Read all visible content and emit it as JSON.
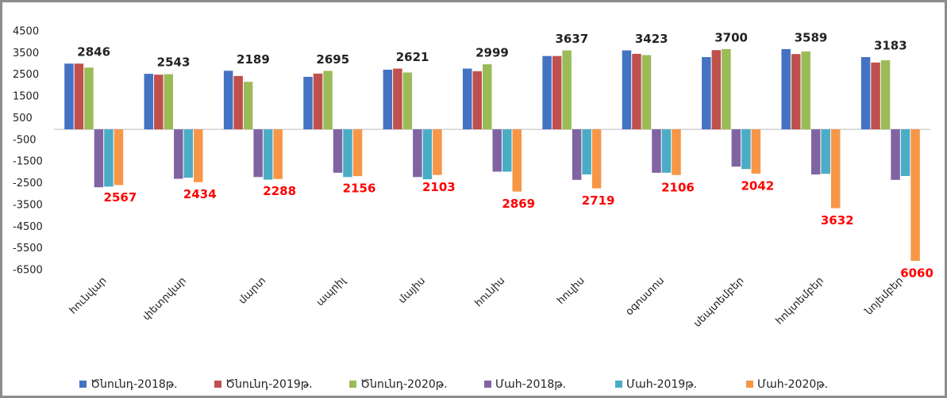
{
  "chart_data": {
    "type": "bar",
    "categories": [
      "հունվար",
      "փետրվար",
      "մարտ",
      "ապրիլ",
      "մայիս",
      "հունիս",
      "հուլիս",
      "օգոստոս",
      "սեպտեմբեր",
      "հոկտեմբեր",
      "նոյեմբեր"
    ],
    "series": [
      {
        "name": "Ծնունդ-2018թ.",
        "color": "#4472c4",
        "values": [
          3030,
          2560,
          2700,
          2420,
          2750,
          2800,
          3380,
          3640,
          3330,
          3700,
          3330
        ]
      },
      {
        "name": "Ծնունդ-2019թ.",
        "color": "#c0504d",
        "values": [
          3030,
          2520,
          2460,
          2570,
          2800,
          2680,
          3380,
          3480,
          3650,
          3470,
          3080
        ]
      },
      {
        "name": "Ծնունդ-2020թ.",
        "color": "#9bbb59",
        "values": [
          2846,
          2543,
          2189,
          2695,
          2621,
          2999,
          3637,
          3423,
          3700,
          3589,
          3183
        ],
        "value_labels": [
          "2846",
          "2543",
          "2189",
          "2695",
          "2621",
          "2999",
          "3637",
          "3423",
          "3700",
          "3589",
          "3183"
        ]
      },
      {
        "name": "Մահ-2018թ.",
        "color": "#8064a2",
        "values": [
          -2670,
          -2280,
          -2200,
          -2000,
          -2200,
          -1950,
          -2330,
          -2000,
          -1720,
          -2080,
          -2330
        ]
      },
      {
        "name": "Մահ-2019թ.",
        "color": "#4bacc6",
        "values": [
          -2640,
          -2230,
          -2320,
          -2200,
          -2300,
          -1950,
          -2080,
          -2000,
          -1830,
          -2050,
          -2150
        ]
      },
      {
        "name": "Մահ-2020թ.",
        "color": "#f79646",
        "values": [
          -2567,
          -2434,
          -2288,
          -2156,
          -2103,
          -2869,
          -2719,
          -2106,
          -2042,
          -3632,
          -6060
        ],
        "value_labels": [
          "2567",
          "2434",
          "2288",
          "2156",
          "2103",
          "2869",
          "2719",
          "2106",
          "2042",
          "3632",
          "6060"
        ]
      }
    ],
    "ylim": [
      -6500,
      4500
    ],
    "yticks": [
      4500,
      3500,
      2500,
      1500,
      500,
      -500,
      -1500,
      -2500,
      -3500,
      -4500,
      -5500,
      -6500
    ],
    "grid": false,
    "legend": "bottom"
  }
}
